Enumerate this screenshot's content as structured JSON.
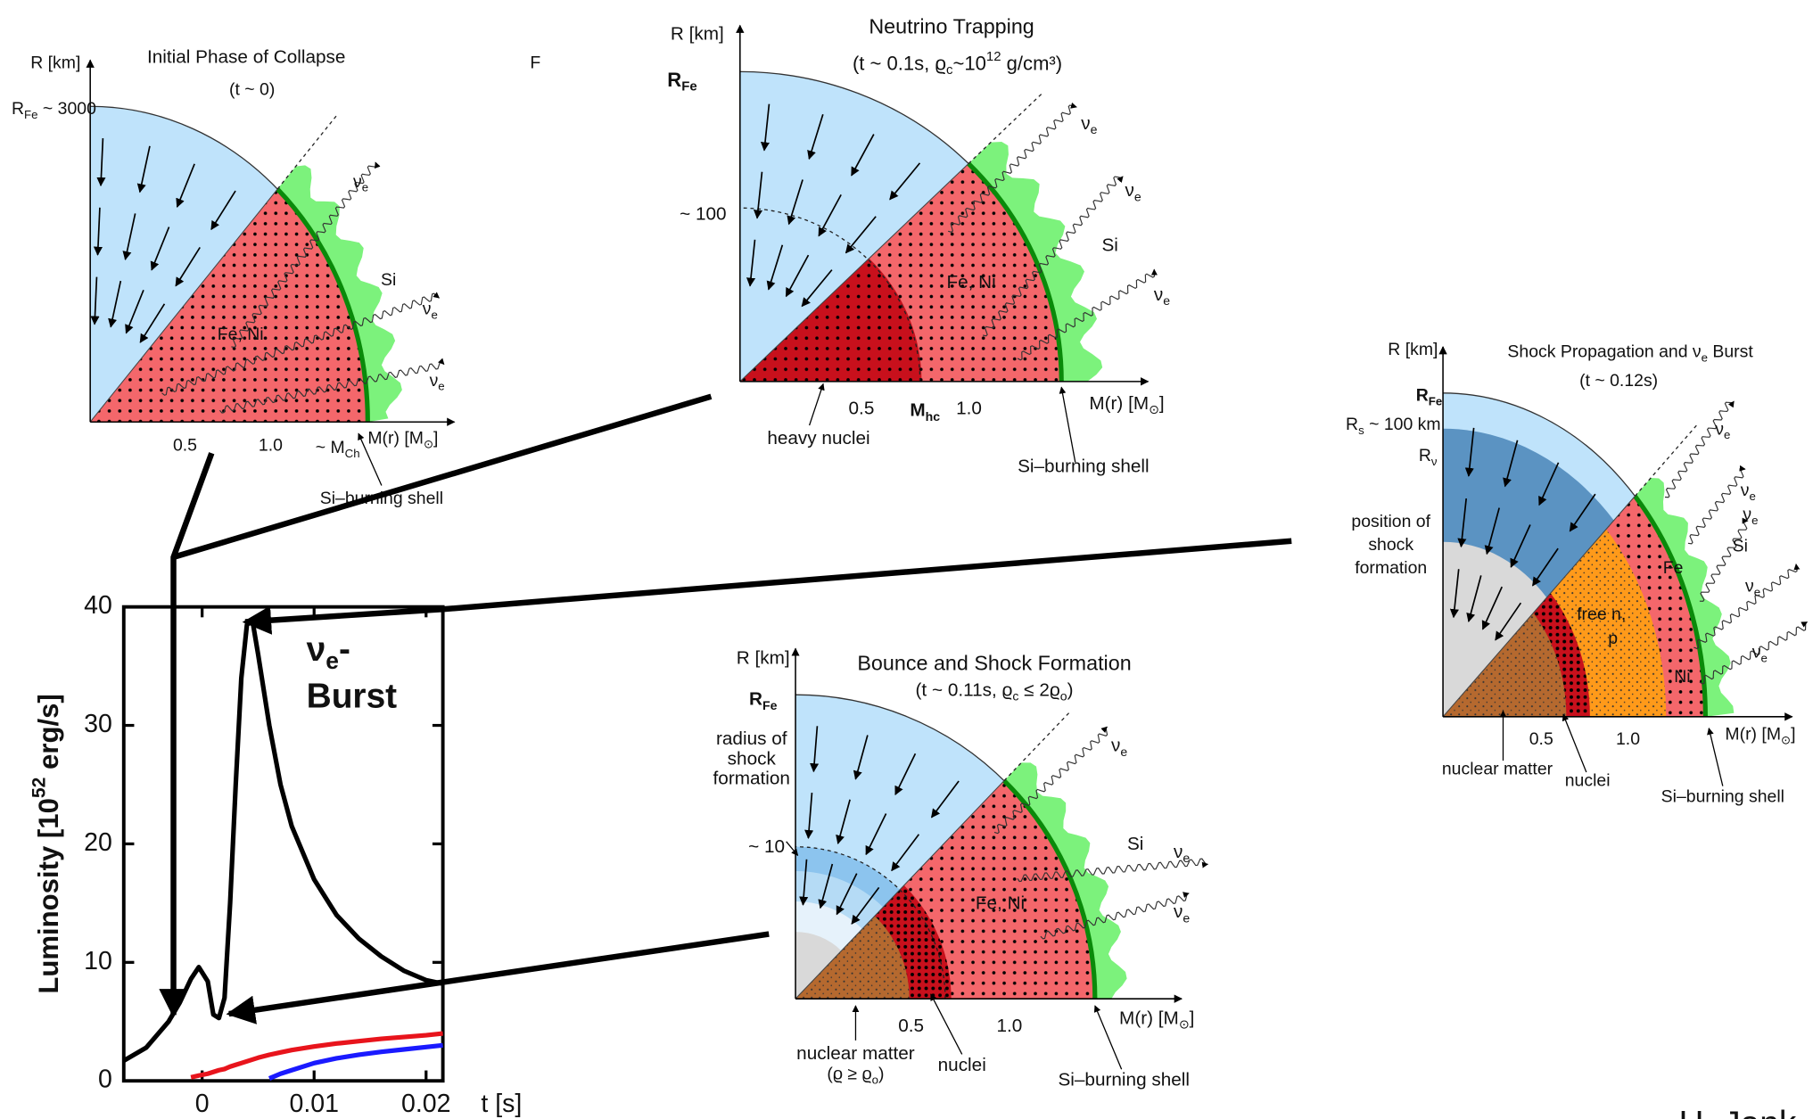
{
  "chart_data": {
    "type": "line",
    "y_label": [
      "Luminosity [10",
      "52",
      " erg/s]"
    ],
    "x_label": "t [s]",
    "annotation": [
      "ν",
      "e",
      "-",
      "Burst"
    ],
    "x": [
      -0.007,
      -0.005,
      -0.003,
      -0.002,
      -0.001,
      -0.0003,
      0.0005,
      0.001,
      0.0015,
      0.002,
      0.0025,
      0.003,
      0.0035,
      0.004,
      0.0045,
      0.005,
      0.006,
      0.007,
      0.008,
      0.01,
      0.012,
      0.014,
      0.016,
      0.018,
      0.02,
      0.0215
    ],
    "series": [
      {
        "color": "#000000",
        "values": [
          1.7,
          2.8,
          5,
          6.6,
          8.6,
          9.6,
          8.4,
          5.6,
          5.3,
          7,
          15,
          25,
          34,
          38.5,
          38.8,
          36,
          30,
          25,
          21.5,
          17,
          14,
          12,
          10.5,
          9.3,
          8.5,
          8.2
        ]
      },
      {
        "color": "#e8141c",
        "values": [
          null,
          null,
          null,
          null,
          0.3,
          0.45,
          0.6,
          0.75,
          0.9,
          1.0,
          1.2,
          1.35,
          1.5,
          1.65,
          1.8,
          1.95,
          2.2,
          2.4,
          2.6,
          2.9,
          3.15,
          3.35,
          3.55,
          3.7,
          3.85,
          4.0
        ]
      },
      {
        "color": "#1a1aff",
        "values": [
          null,
          null,
          null,
          null,
          null,
          null,
          null,
          null,
          null,
          null,
          null,
          null,
          null,
          null,
          null,
          null,
          0.2,
          0.6,
          0.9,
          1.5,
          1.9,
          2.2,
          2.45,
          2.65,
          2.85,
          3.0
        ]
      }
    ],
    "xlim": [
      -0.007,
      0.0215
    ],
    "xticks": [
      0,
      0.01,
      0.02
    ],
    "ylim": [
      0,
      40
    ],
    "yticks": [
      0,
      10,
      20,
      30,
      40
    ],
    "grid": false
  },
  "panels": [
    {
      "labels": [
        "Initial Phase of Collapse",
        "(t ~ 0)",
        "R [km]",
        [
          "R",
          "Fe",
          " ~ 3000"
        ],
        "0.5",
        "1.0",
        [
          "~ M",
          "Ch"
        ],
        [
          "M(r) [M",
          "⊙",
          "]"
        ],
        "Fe, Ni",
        "Si",
        [
          "ν",
          "e"
        ],
        [
          "ν",
          "e"
        ],
        [
          "ν",
          "e"
        ],
        "Si–burning shell",
        "F"
      ]
    },
    {
      "labels": [
        "Neutrino Trapping",
        [
          "(t ~ 0.1s,  ϱ",
          "c",
          "~10",
          "12",
          " g/cm³)"
        ],
        "R [km]",
        [
          "R",
          "Fe"
        ],
        "~ 100",
        "0.5",
        [
          "M",
          "hc"
        ],
        "1.0",
        [
          "M(r) [M",
          "⊙",
          "]"
        ],
        "Fe, Ni",
        "Si",
        [
          "ν",
          "e"
        ],
        [
          "ν",
          "e"
        ],
        [
          "ν",
          "e"
        ],
        "heavy nuclei",
        "Si–burning shell"
      ]
    },
    {
      "labels": [
        [
          "Shock Propagation and ν",
          "e",
          " Burst"
        ],
        "(t ~ 0.12s)",
        "R [km]",
        [
          "R",
          "Fe"
        ],
        [
          "R",
          "s",
          " ~ 100 km"
        ],
        [
          "R",
          "ν"
        ],
        "position of",
        "shock",
        "formation",
        "free n,",
        "p",
        "Fe",
        "Ni",
        "Si",
        "0.5",
        "1.0",
        [
          "M(r) [M",
          "⊙",
          "]"
        ],
        "nuclear matter",
        "nuclei",
        "Si–burning shell",
        [
          "ν",
          "e"
        ],
        [
          "ν",
          "e"
        ],
        [
          "ν",
          "e"
        ],
        [
          "ν",
          "e"
        ],
        [
          "ν",
          "e"
        ]
      ]
    },
    {
      "labels": [
        "Bounce and Shock Formation",
        [
          "(t ~ 0.11s,  ϱ",
          "c",
          " ≤ 2ϱ",
          "o",
          ")"
        ],
        "R [km]",
        [
          "R",
          "Fe"
        ],
        "radius of",
        "shock",
        "formation",
        "~ 10",
        "0.5",
        "1.0",
        [
          "M(r) [M",
          "⊙",
          "]"
        ],
        "Fe, Ni",
        "Si",
        [
          "ν",
          "e"
        ],
        [
          "ν",
          "e"
        ],
        [
          "ν",
          "e"
        ],
        "nuclear matter",
        [
          "(ϱ ≥ ϱ",
          "o",
          ")"
        ],
        "nuclei",
        "Si–burning shell"
      ]
    }
  ],
  "credit": "H. Jank"
}
